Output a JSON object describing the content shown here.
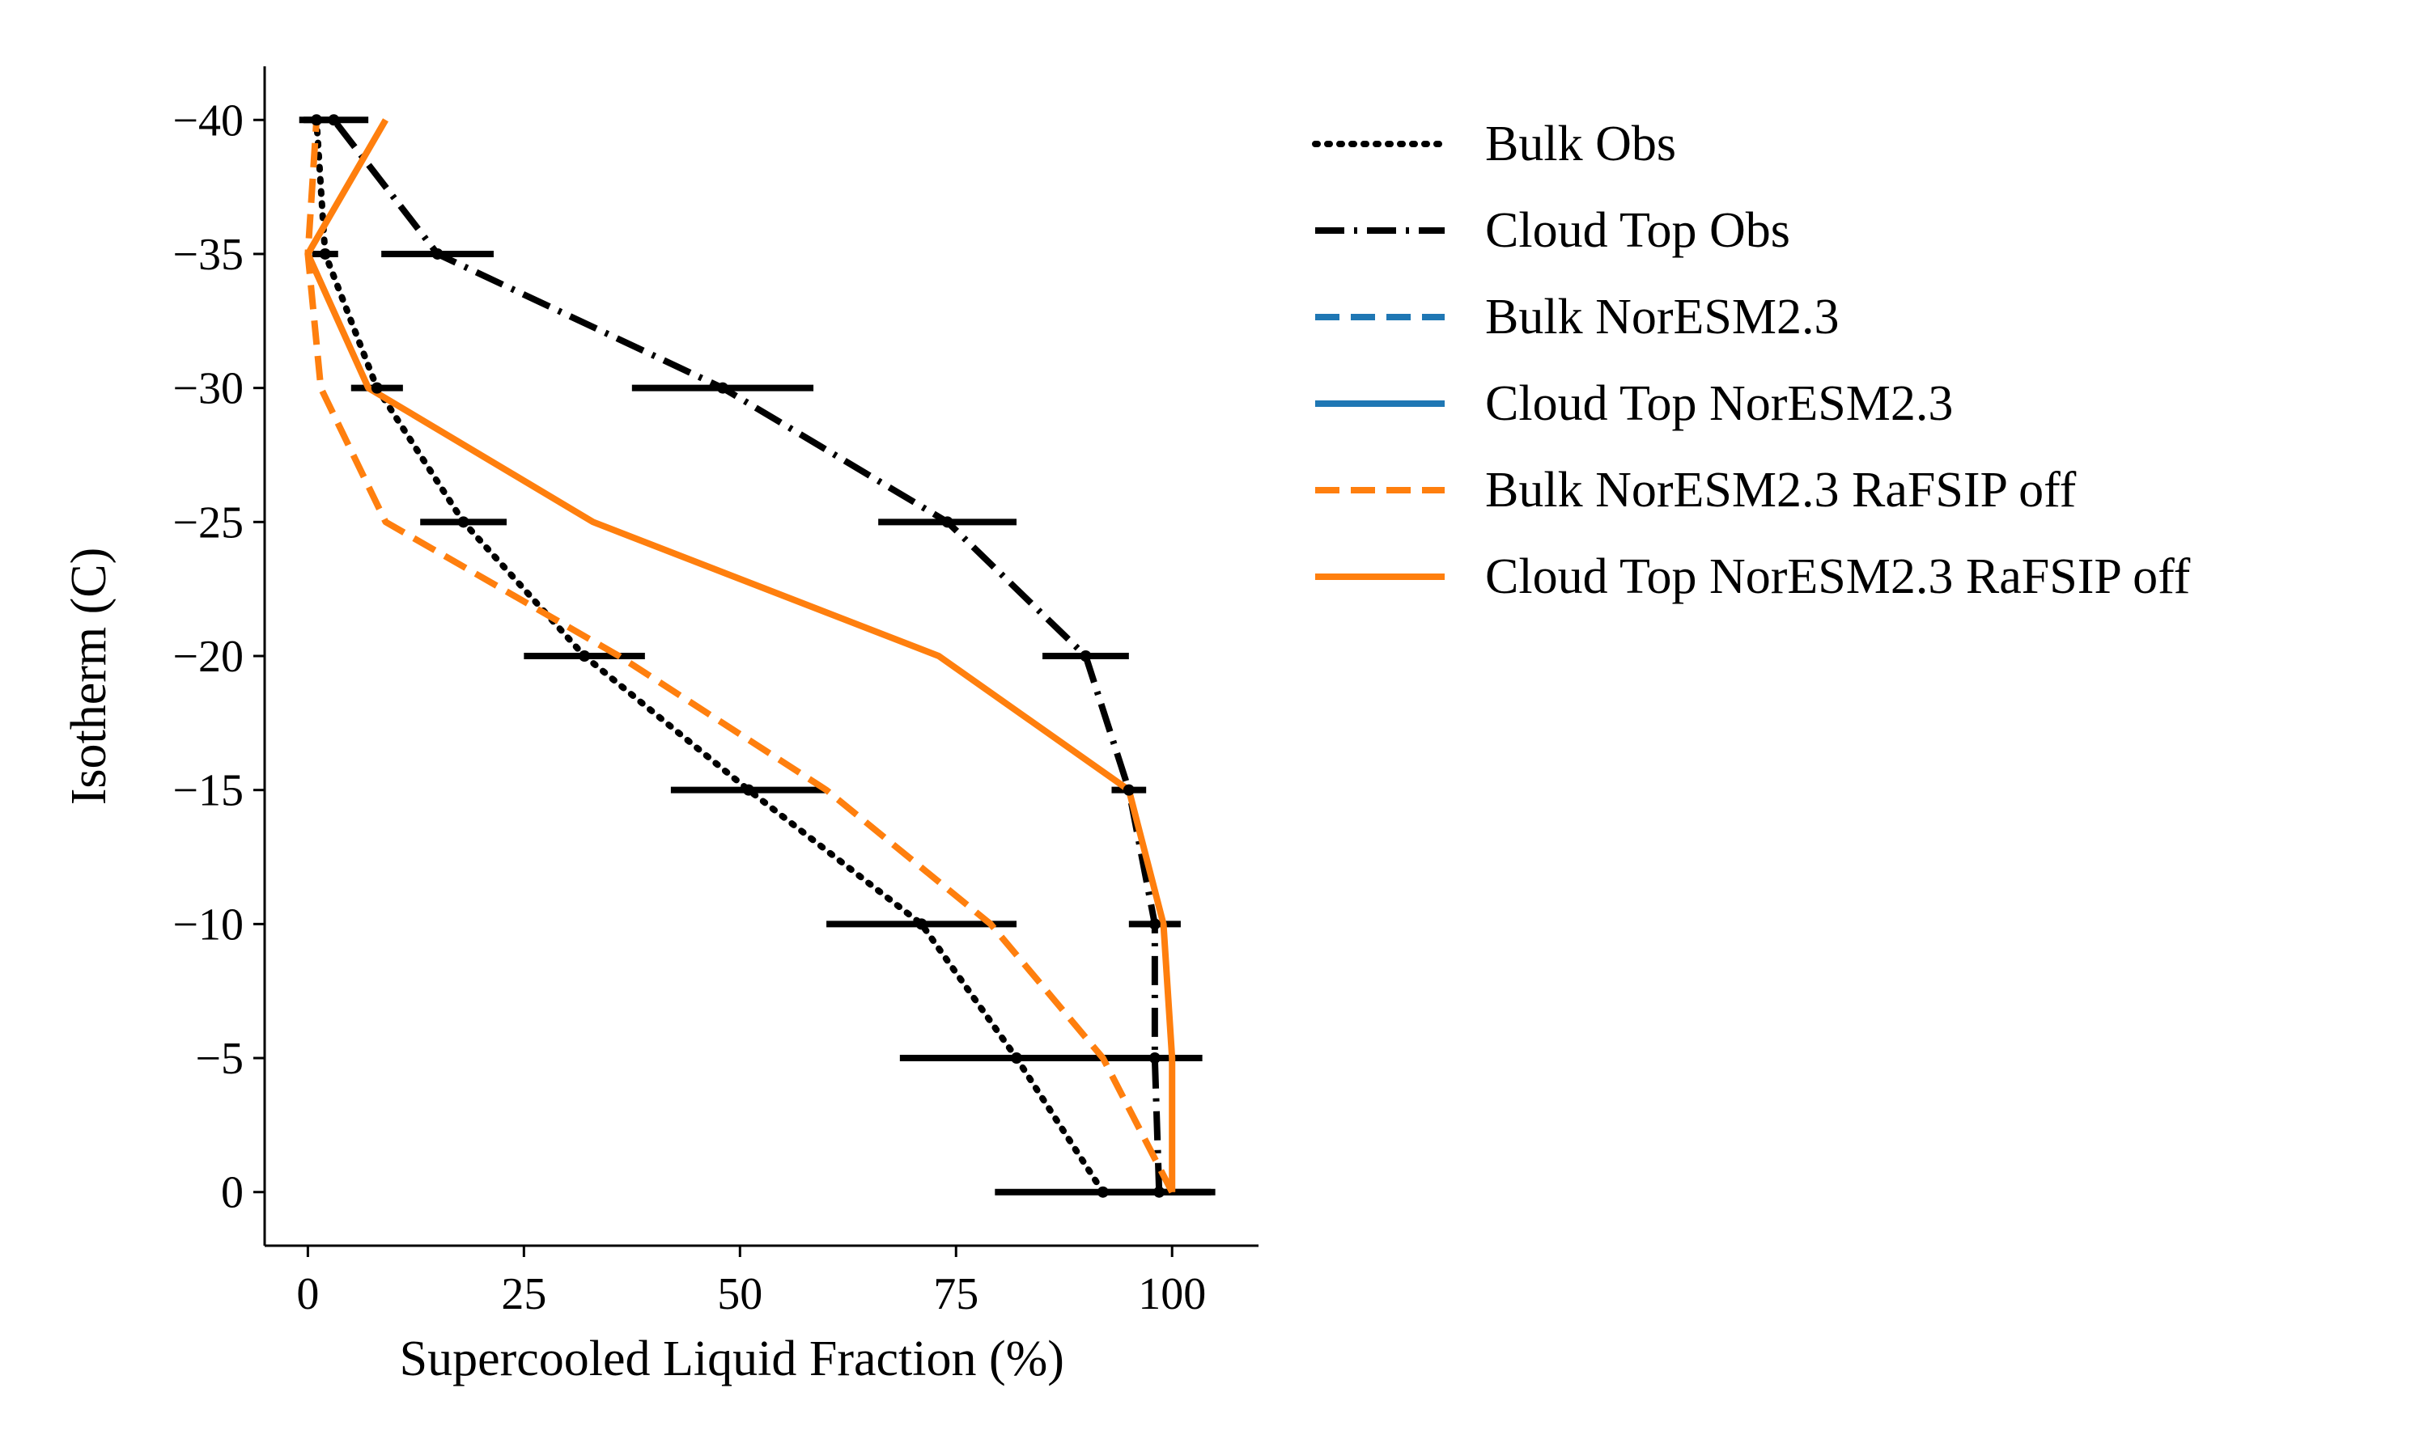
{
  "chart_data": {
    "type": "line",
    "title": "",
    "xlabel": "Supercooled Liquid Fraction (%)",
    "ylabel": "Isotherm (C)",
    "xlim": [
      -5,
      110
    ],
    "ylim": [
      2,
      -42
    ],
    "y_inverted": true,
    "xticks": [
      0,
      25,
      50,
      75,
      100
    ],
    "xtick_labels": [
      "0",
      "25",
      "50",
      "75",
      "100"
    ],
    "yticks": [
      0,
      -5,
      -10,
      -15,
      -20,
      -25,
      -30,
      -35,
      -40
    ],
    "ytick_labels": [
      "0",
      "−5",
      "−10",
      "−15",
      "−20",
      "−25",
      "−30",
      "−35",
      "−40"
    ],
    "grid": false,
    "legend_position": "outside right",
    "series": [
      {
        "name": "Bulk Obs",
        "color": "#000000",
        "style": "dotted",
        "x": [
          92,
          82,
          71,
          51,
          32,
          18,
          8,
          2,
          1
        ],
        "y": [
          0,
          -5,
          -10,
          -15,
          -20,
          -25,
          -30,
          -35,
          -40
        ],
        "xerr": [
          12.5,
          13.5,
          11,
          9,
          7,
          5,
          3,
          1.5,
          1.5
        ],
        "error_bar_color": "#000000"
      },
      {
        "name": "Cloud Top Obs",
        "color": "#000000",
        "style": "dashdot",
        "x": [
          98.5,
          98,
          98,
          95,
          90,
          74,
          48,
          15,
          3
        ],
        "y": [
          0,
          -5,
          -10,
          -15,
          -20,
          -25,
          -30,
          -35,
          -40
        ],
        "xerr": [
          6.5,
          5.5,
          3,
          2,
          5,
          8,
          10.5,
          6.5,
          4
        ],
        "error_bar_color": "#000000"
      },
      {
        "name": "Bulk NorESM2.3",
        "color": "#1f77b4",
        "style": "dashed",
        "x": [],
        "y": []
      },
      {
        "name": "Cloud Top NorESM2.3",
        "color": "#1f77b4",
        "style": "solid",
        "x": [],
        "y": []
      },
      {
        "name": "Bulk NorESM2.3 RaFSIP off",
        "color": "#ff7f0e",
        "style": "dashed",
        "x": [
          100,
          92,
          79,
          60,
          36,
          9,
          1.5,
          0,
          1
        ],
        "y": [
          0,
          -5,
          -10,
          -15,
          -20,
          -25,
          -30,
          -35,
          -40
        ]
      },
      {
        "name": "Cloud Top NorESM2.3 RaFSIP off",
        "color": "#ff7f0e",
        "style": "solid",
        "x": [
          100,
          100,
          99,
          95,
          73,
          33,
          7,
          0,
          9
        ],
        "y": [
          0,
          -5,
          -10,
          -15,
          -20,
          -25,
          -30,
          -35,
          -40
        ]
      }
    ]
  }
}
